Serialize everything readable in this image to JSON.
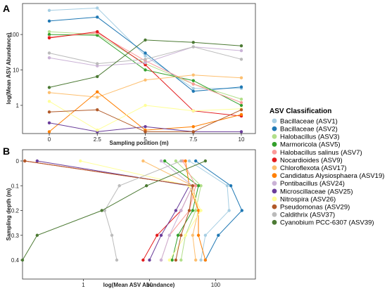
{
  "chart_data": [
    {
      "panel": "A",
      "type": "line",
      "xlabel": "Sampling position (m)",
      "ylabel": "log(Mean ASV Abundance)",
      "yscale": "log",
      "x": [
        0,
        2.5,
        5,
        7.5,
        10
      ],
      "x_ticks": [
        "0",
        "2.5",
        "5",
        "7.5",
        "10"
      ],
      "y_ticks": [
        {
          "label": "100",
          "value": 100
        },
        {
          "label": "10",
          "value": 10
        },
        {
          "label": "1",
          "value": 1
        }
      ],
      "ylim": [
        0.16,
        750
      ],
      "grid": false,
      "series": [
        {
          "name": "Bacillaceae (ASV1)",
          "color": "#a6cee3",
          "values": [
            480,
            560,
            25,
            3,
            3
          ]
        },
        {
          "name": "Bacillaceae (ASV2)",
          "color": "#1f78b4",
          "values": [
            240,
            310,
            30,
            2.5,
            3.3
          ]
        },
        {
          "name": "Halobacillus (ASV3)",
          "color": "#b2df8a",
          "values": [
            120,
            100,
            15,
            4,
            1.5
          ]
        },
        {
          "name": "Marmoricola (ASV5)",
          "color": "#33a02c",
          "values": [
            100,
            95,
            10,
            5,
            1
          ]
        },
        {
          "name": "Halobacillus salinus (ASV7)",
          "color": "#fb9a99",
          "values": [
            85,
            110,
            18,
            4,
            1.2
          ]
        },
        {
          "name": "Nocardioides (ASV9)",
          "color": "#e31a1c",
          "values": [
            80,
            120,
            14,
            0.7,
            0.5
          ]
        },
        {
          "name": "Chloroflexota (ASV17)",
          "color": "#fdbf6f",
          "values": [
            2.3,
            1.7,
            5.2,
            7.2,
            6
          ]
        },
        {
          "name": "Candidatus Alysiosphaera (ASV19)",
          "color": "#ff7f00",
          "values": [
            0.18,
            2.4,
            0.2,
            0.25,
            0.55
          ]
        },
        {
          "name": "Pontibacillus (ASV24)",
          "color": "#cab2d6",
          "values": [
            22,
            13,
            16,
            45,
            35
          ]
        },
        {
          "name": "Microscillaceae (ASV25)",
          "color": "#6a3d9a",
          "values": [
            0.32,
            0.18,
            0.25,
            0.18,
            0.18
          ]
        },
        {
          "name": "Nitrospira (ASV26)",
          "color": "#ffff99",
          "values": [
            1.3,
            0.2,
            1,
            0.7,
            0.8
          ]
        },
        {
          "name": "Pseudomonas (ASV29)",
          "color": "#b15928",
          "values": [
            0.65,
            0.75,
            0.18,
            0.18,
            0.75
          ]
        },
        {
          "name": "Caldithrix (ASV37)",
          "color": "#bbbbbb",
          "values": [
            30,
            15,
            20,
            45,
            20
          ]
        },
        {
          "name": "Cyanobium PCC-6307 (ASV39)",
          "color": "#4c7a34",
          "values": [
            3.2,
            6.5,
            70,
            60,
            48
          ]
        }
      ]
    },
    {
      "panel": "B",
      "type": "line",
      "xlabel": "log(Mean ASV Abundance)",
      "ylabel": "Sampling depth (m)",
      "xscale": "log",
      "y": [
        0,
        0.1,
        0.2,
        0.3,
        0.4
      ],
      "y_ticks": [
        "0",
        "0.1",
        "0.2",
        "0.3",
        "0.4"
      ],
      "x_ticks": [
        {
          "label": "1",
          "value": 1
        },
        {
          "label": "10",
          "value": 10
        },
        {
          "label": "100",
          "value": 100
        }
      ],
      "xlim": [
        0.12,
        400
      ],
      "grid": false,
      "series": [
        {
          "name": "Bacillaceae (ASV1)",
          "color": "#a6cee3",
          "values": [
            40,
            150,
            160,
            70,
            60
          ]
        },
        {
          "name": "Bacillaceae (ASV2)",
          "color": "#1f78b4",
          "values": [
            50,
            170,
            250,
            110,
            70
          ]
        },
        {
          "name": "Halobacillus (ASV3)",
          "color": "#b2df8a",
          "values": [
            25,
            60,
            50,
            35,
            30
          ]
        },
        {
          "name": "Marmoricola (ASV5)",
          "color": "#33a02c",
          "values": [
            17,
            55,
            45,
            27,
            22
          ]
        },
        {
          "name": "Halobacillus salinus (ASV7)",
          "color": "#fb9a99",
          "values": [
            32,
            50,
            40,
            20,
            15
          ]
        },
        {
          "name": "Nocardioides (ASV9)",
          "color": "#e31a1c",
          "values": [
            0.13,
            45,
            30,
            13,
            8
          ]
        },
        {
          "name": "Chloroflexota (ASV17)",
          "color": "#fdbf6f",
          "values": [
            8,
            45,
            55,
            45,
            50
          ]
        },
        {
          "name": "Candidatus Alysiosphaera (ASV19)",
          "color": "#ff7f00",
          "values": [
            35,
            40,
            55,
            55,
            70
          ]
        },
        {
          "name": "Pontibacillus (ASV24)",
          "color": "#cab2d6",
          "values": [
            15,
            45,
            30,
            20,
            15
          ]
        },
        {
          "name": "Microscillaceae (ASV25)",
          "color": "#6a3d9a",
          "values": [
            0.2,
            40,
            25,
            15,
            10
          ]
        },
        {
          "name": "Nitrospira (ASV26)",
          "color": "#ffff99",
          "values": [
            0.9,
            40,
            60,
            35,
            20
          ]
        },
        {
          "name": "Pseudomonas (ASV29)",
          "color": "#b15928",
          "values": [
            0.13,
            45,
            40,
            30,
            25
          ]
        },
        {
          "name": "Caldithrix (ASV37)",
          "color": "#bbbbbb",
          "values": [
            30,
            3.5,
            2.1,
            2.7,
            3.2
          ]
        },
        {
          "name": "Cyanobium PCC-6307 (ASV39)",
          "color": "#4c7a34",
          "values": [
            70,
            9,
            1.9,
            0.2,
            0.12
          ]
        }
      ]
    }
  ],
  "legend": {
    "title": "ASV Classification",
    "placement": "right"
  }
}
